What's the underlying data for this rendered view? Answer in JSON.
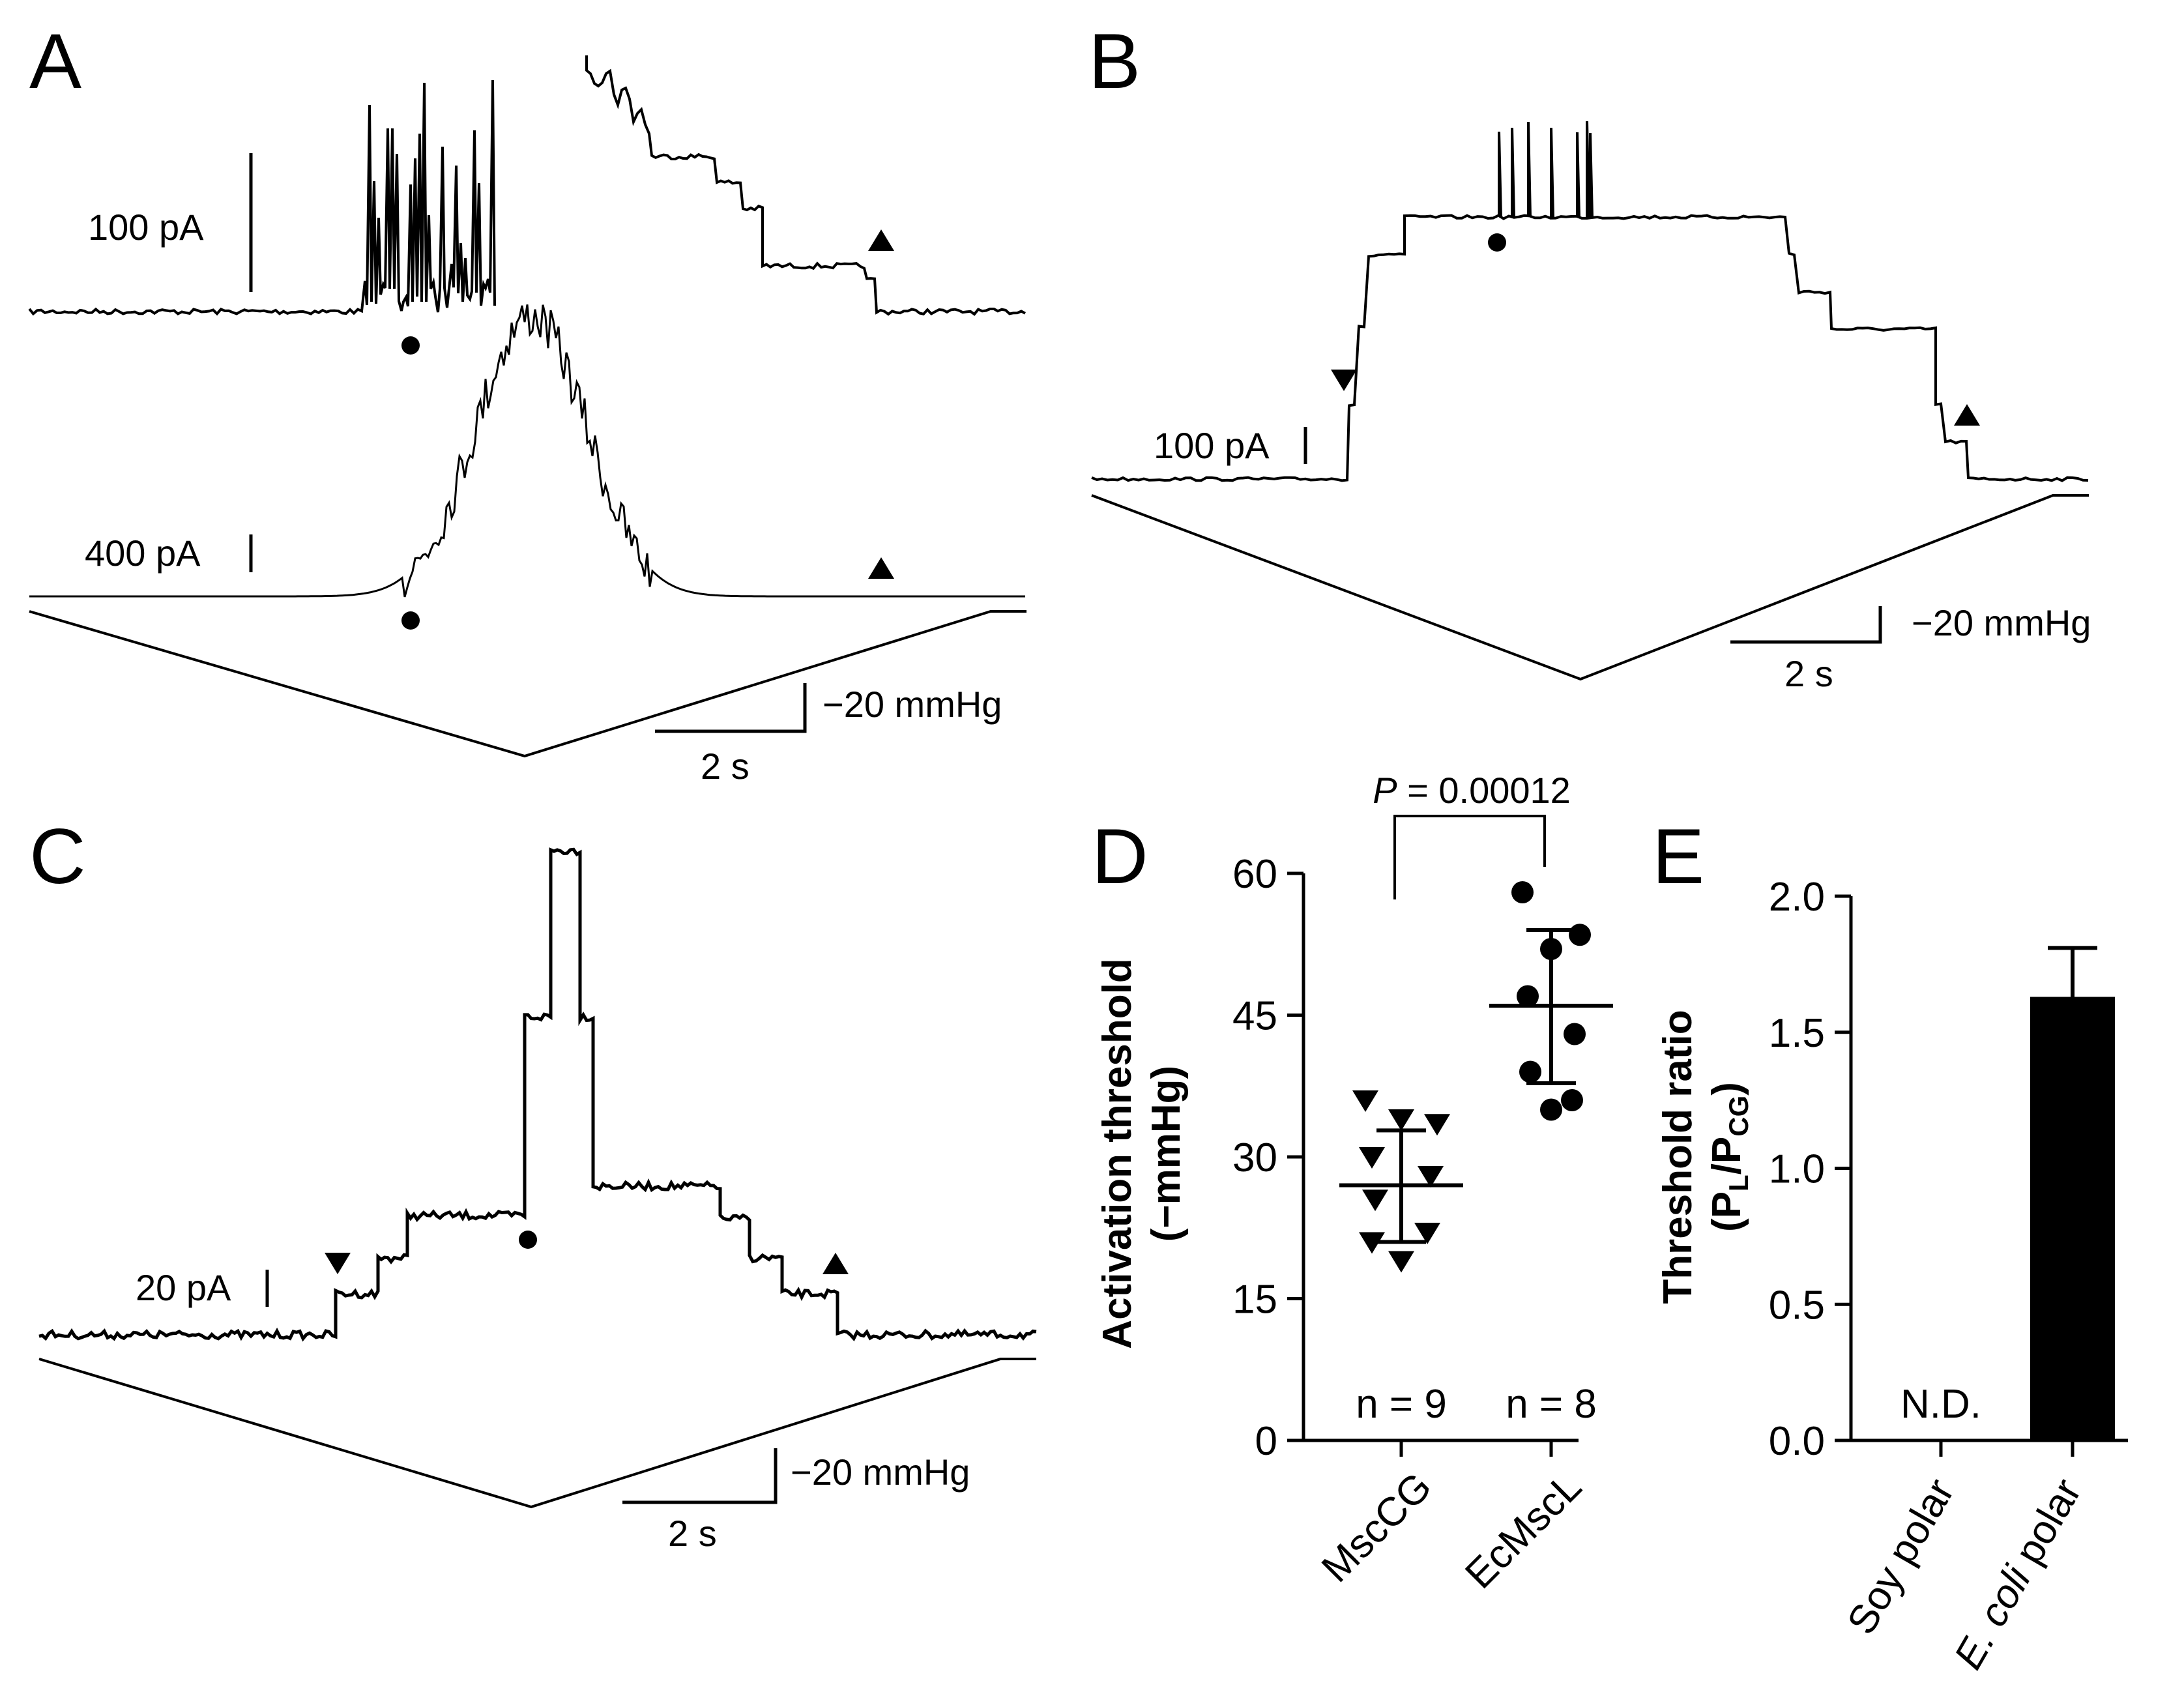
{
  "figure": {
    "panels": [
      {
        "id": "A",
        "label": "A"
      },
      {
        "id": "B",
        "label": "B"
      },
      {
        "id": "C",
        "label": "C"
      },
      {
        "id": "D",
        "label": "D"
      },
      {
        "id": "E",
        "label": "E"
      }
    ]
  },
  "panel_a": {
    "top_scale": "100 pA",
    "bottom_scale": "400 pA",
    "pressure_scale": "−20 mmHg",
    "time_scale": "2 s"
  },
  "panel_b": {
    "current_scale": "100 pA",
    "pressure_scale": "−20 mmHg",
    "time_scale": "2 s"
  },
  "panel_c": {
    "current_scale": "20 pA",
    "pressure_scale": "−20 mmHg",
    "time_scale": "2 s"
  },
  "chart_data": [
    {
      "panel": "D",
      "type": "scatter",
      "ylabel_line1": "Activation threshold",
      "ylabel_line2": "(−mmHg)",
      "ylim": [
        0,
        60
      ],
      "yticks": [
        "0",
        "15",
        "30",
        "45",
        "60"
      ],
      "categories": [
        "MscCG",
        "EcMscL"
      ],
      "markers": [
        "triangle-down",
        "circle"
      ],
      "series": [
        {
          "category": "MscCG",
          "n_label": "n = 9",
          "mean": 27,
          "sd_low": 21,
          "sd_high": 32.8,
          "values": [
            36,
            33.5,
            34,
            30,
            28,
            25.5,
            22,
            19,
            21
          ]
        },
        {
          "category": "EcMscL",
          "n_label": "n = 8",
          "mean": 46,
          "sd_low": 37.8,
          "sd_high": 54,
          "values": [
            58,
            53.5,
            52,
            47,
            43,
            39,
            36,
            35
          ]
        }
      ],
      "p_value_prefix": "P",
      "p_value_rest": " = 0.00012"
    },
    {
      "panel": "E",
      "type": "bar",
      "ylabel_line1": "Threshold ratio",
      "ylabel_line2_main": "(P",
      "ylabel_sub1": "L",
      "ylabel_mid": "/P",
      "ylabel_sub2": "CG",
      "ylabel_close": ")",
      "ylim": [
        0,
        2.0
      ],
      "yticks": [
        "0.0",
        "0.5",
        "1.0",
        "1.5",
        "2.0"
      ],
      "categories": [
        "Soy polar",
        "E. coli polar"
      ],
      "cat2_italic": "E. coli",
      "cat2_rest": " polar",
      "values": [
        null,
        1.63
      ],
      "errors": [
        null,
        0.18
      ],
      "nd_label": "N.D."
    }
  ]
}
